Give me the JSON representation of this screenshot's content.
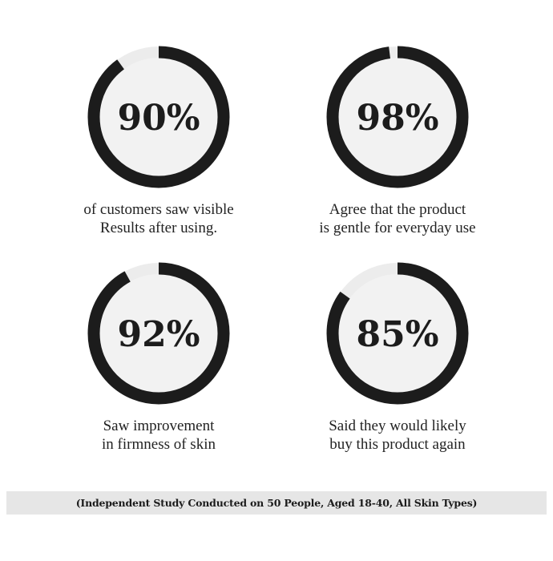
{
  "colors": {
    "ring": "#1c1c1c",
    "track": "#ececec",
    "inner": "#f2f2f2",
    "banner": "#e6e6e6"
  },
  "stats": [
    {
      "value": 90,
      "label": "90%",
      "caption": [
        "of customers saw visible",
        "Results after using."
      ]
    },
    {
      "value": 98,
      "label": "98%",
      "caption": [
        "Agree that the product",
        "is gentle for everyday use"
      ]
    },
    {
      "value": 92,
      "label": "92%",
      "caption": [
        "Saw improvement",
        "in firmness of skin"
      ]
    },
    {
      "value": 85,
      "label": "85%",
      "caption": [
        "Said they would likely",
        "buy this product again"
      ]
    }
  ],
  "footnote": "(Independent Study Conducted on 50 People, Aged 18-40, All Skin Types)"
}
